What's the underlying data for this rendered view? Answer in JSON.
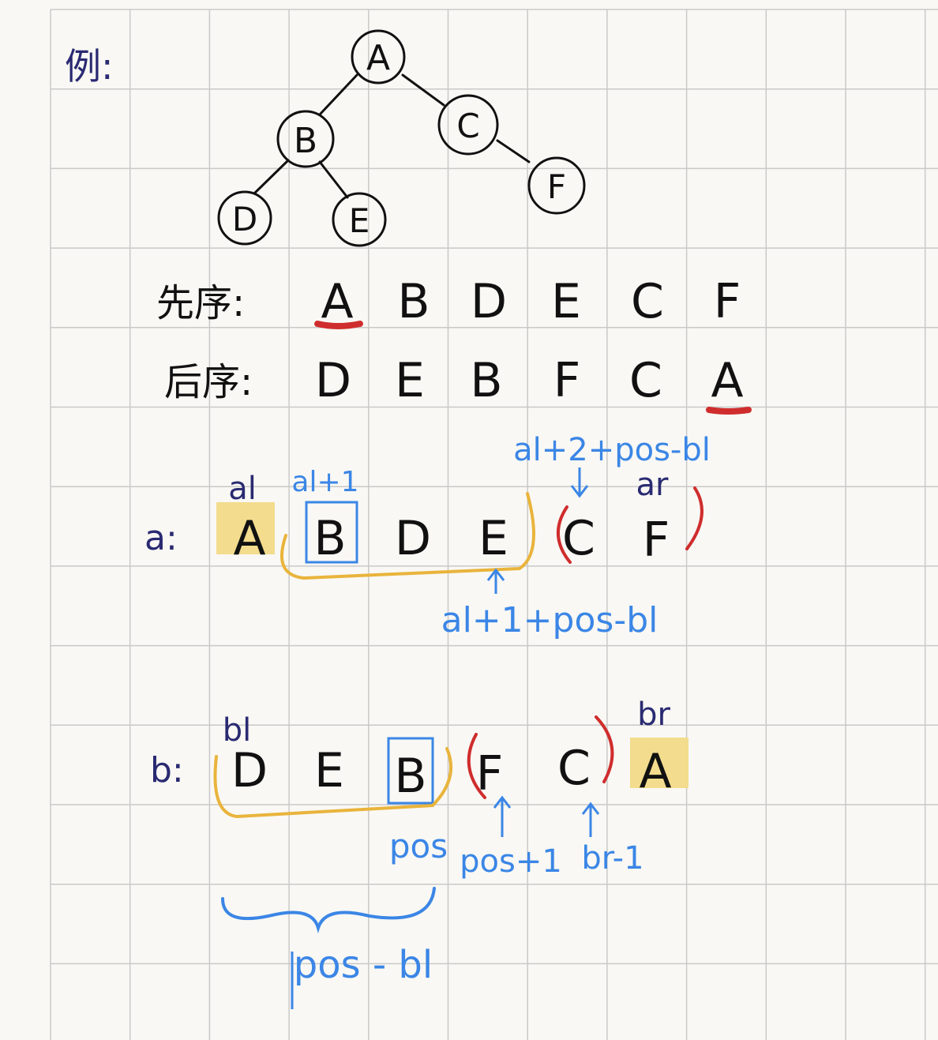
{
  "colors": {
    "background": "#f9f8f4",
    "grid": "#c9c9c9",
    "ink": "#111111",
    "navy": "#2a2a72",
    "blue": "#3b86e6",
    "red": "#cf2d2d",
    "highlight": "#f3dc8d",
    "bracket": "#e9b43c"
  },
  "example_label": "例:",
  "tree": {
    "nodes": [
      {
        "id": "A",
        "label": "A"
      },
      {
        "id": "B",
        "label": "B"
      },
      {
        "id": "C",
        "label": "C"
      },
      {
        "id": "D",
        "label": "D"
      },
      {
        "id": "E",
        "label": "E"
      },
      {
        "id": "F",
        "label": "F"
      }
    ],
    "edges": [
      [
        "A",
        "B"
      ],
      [
        "A",
        "C"
      ],
      [
        "B",
        "D"
      ],
      [
        "B",
        "E"
      ],
      [
        "C",
        "F"
      ]
    ]
  },
  "preorder": {
    "label": "先序:",
    "sequence": [
      "A",
      "B",
      "D",
      "E",
      "C",
      "F"
    ]
  },
  "postorder": {
    "label": "后序:",
    "sequence": [
      "D",
      "E",
      "B",
      "F",
      "C",
      "A"
    ]
  },
  "array_a": {
    "label": "a:",
    "sequence": [
      "A",
      "B",
      "D",
      "E",
      "C",
      "F"
    ],
    "annotations": {
      "al": "al",
      "al_plus_1": "al+1",
      "ar": "ar",
      "left_end": "al+1+pos-bl",
      "right_start": "al+2+pos-bl"
    }
  },
  "array_b": {
    "label": "b:",
    "sequence": [
      "D",
      "E",
      "B",
      "F",
      "C",
      "A"
    ],
    "annotations": {
      "bl": "bl",
      "br": "br",
      "pos": "pos",
      "pos_plus_1": "pos+1",
      "br_minus_1": "br-1",
      "left_size": "pos - bl"
    }
  }
}
